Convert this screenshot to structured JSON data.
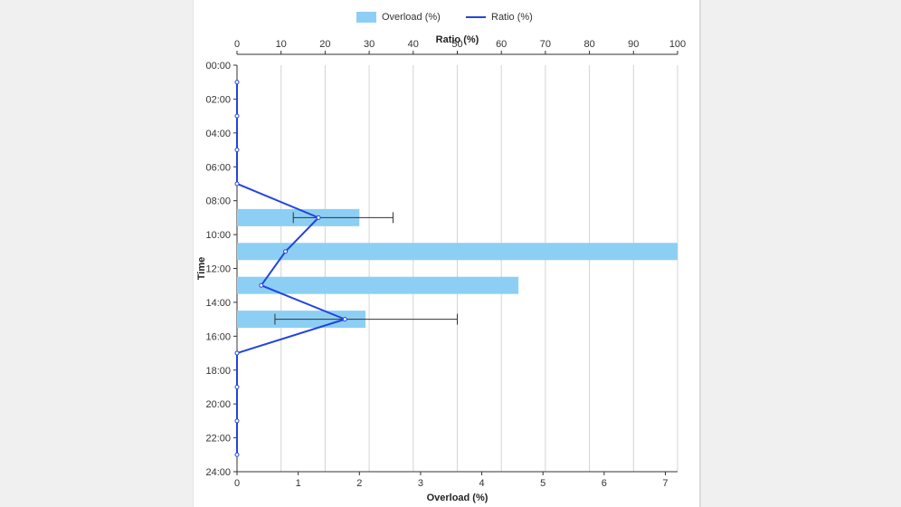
{
  "legend": {
    "bar_label": "Overload (%)",
    "line_label": "Ratio (%)"
  },
  "chart_data": {
    "type": "bar",
    "orientation": "horizontal",
    "ylabel": "Time",
    "xlabel_bottom": "Overload (%)",
    "xlabel_top": "Ratio (%)",
    "y_ticks": [
      "00:00",
      "02:00",
      "04:00",
      "06:00",
      "08:00",
      "10:00",
      "12:00",
      "14:00",
      "16:00",
      "18:00",
      "20:00",
      "22:00",
      "24:00"
    ],
    "x_bottom_ticks": [
      "0",
      "1",
      "2",
      "3",
      "4",
      "5",
      "6",
      "7"
    ],
    "x_top_ticks": [
      "0",
      "10",
      "20",
      "30",
      "40",
      "50",
      "60",
      "70",
      "80",
      "90",
      "100"
    ],
    "x_bottom_range": [
      0,
      7.2
    ],
    "x_top_range": [
      0,
      100
    ],
    "y_range_hours": [
      0,
      24
    ],
    "grid_vertical": true,
    "legend_position": "top",
    "colors": {
      "bar": "#8dcff4",
      "line": "#2244e0",
      "error": "#333333"
    },
    "series": [
      {
        "name": "Overload (%)",
        "axis": "bottom",
        "values": [
          {
            "time": "09:00",
            "value": 2.0,
            "error_low": 0.92,
            "error_high": 2.55
          },
          {
            "time": "11:00",
            "value": 7.2
          },
          {
            "time": "13:00",
            "value": 4.6
          },
          {
            "time": "15:00",
            "value": 2.1,
            "error_low": 0.62,
            "error_high": 3.6
          }
        ]
      },
      {
        "name": "Ratio (%)",
        "axis": "top",
        "values": [
          {
            "time": "01:00",
            "value": 0
          },
          {
            "time": "03:00",
            "value": 0
          },
          {
            "time": "05:00",
            "value": 0
          },
          {
            "time": "07:00",
            "value": 0
          },
          {
            "time": "09:00",
            "value": 18.5
          },
          {
            "time": "11:00",
            "value": 11
          },
          {
            "time": "13:00",
            "value": 5.5
          },
          {
            "time": "15:00",
            "value": 24.5
          },
          {
            "time": "17:00",
            "value": 0
          },
          {
            "time": "19:00",
            "value": 0
          },
          {
            "time": "21:00",
            "value": 0
          },
          {
            "time": "23:00",
            "value": 0
          }
        ]
      }
    ]
  }
}
